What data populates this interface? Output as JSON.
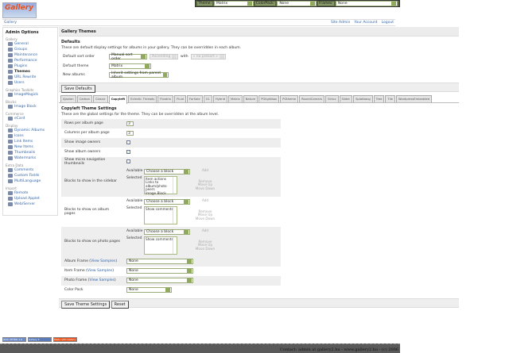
{
  "themebar": {
    "theme_label": "Theme:",
    "theme_value": "Matrix",
    "colorpack_label": "ColorPack:",
    "colorpack_value": "None",
    "frames_label": "Frames:",
    "frames_value": "None"
  },
  "logo": "Gallery",
  "breadcrumb": "Gallery",
  "header_links": [
    "Site Admin",
    "Your Account",
    "Logout"
  ],
  "sidebar": {
    "title": "Admin Options",
    "groups": [
      {
        "name": "Gallery",
        "items": [
          "General",
          "Groups",
          "Maintenance",
          "Performance",
          "Plugins",
          "Themes",
          "URL Rewrite",
          "Users"
        ]
      },
      {
        "name": "Graphics Toolkits",
        "items": [
          "ImageMagick"
        ]
      },
      {
        "name": "Blocks",
        "items": [
          "Image Block"
        ]
      },
      {
        "name": "Commerce",
        "items": [
          "eCard"
        ]
      },
      {
        "name": "Display",
        "items": [
          "Dynamic Albums",
          "Icons",
          "Link Items",
          "New Items",
          "Thumbnails",
          "Watermarks"
        ]
      },
      {
        "name": "Extra Data",
        "items": [
          "Comments",
          "Custom Fields",
          "MultiLanguage"
        ]
      },
      {
        "name": "Import",
        "items": [
          "Remote",
          "Upload Applet",
          "Web/Server"
        ]
      }
    ],
    "current": "Themes"
  },
  "main": {
    "title": "Gallery Themes",
    "defaults": {
      "heading": "Defaults",
      "description": "These are default display settings for albums in your gallery. They can be overridden in each album.",
      "sort_label": "Default sort order",
      "sort_value": "Manual sort order",
      "direction_value": "Ascending",
      "with_label": "with",
      "presort_value": "« no presort »",
      "theme_label": "Default theme",
      "theme_value": "Matrix",
      "new_albums_label": "New albums",
      "new_albums_value": "Inherit settings from parent album",
      "save_label": "Save Defaults"
    },
    "tabs": [
      "Ajaxian",
      "Carbon",
      "Classic",
      "Copyleft",
      "Eclectic Threads",
      "Floatrix",
      "Fluid",
      "ForSale",
      "G1",
      "Hybrid",
      "Matrix",
      "Nature",
      "PGlightbox",
      "PGtheme",
      "RoundCorners",
      "Siriux",
      "Slider",
      "Splatbang",
      "Tree",
      "Tile",
      "WordpressEmbedded"
    ],
    "active_tab": "Copyleft",
    "settings": {
      "heading": "Copyleft Theme Settings",
      "description": "These are the global settings for the theme. They can be overridden at the album level.",
      "rows_label": "Rows per album page",
      "rows_value": "3",
      "cols_label": "Columns per album page",
      "cols_value": "3",
      "image_owners_label": "Show image owners",
      "image_owners": false,
      "album_owners_label": "Show album owners",
      "album_owners": true,
      "micro_label": "Show micro navigation thumbnails",
      "micro": false,
      "available_label": "Available",
      "selected_label": "Selected",
      "choose_block": "Choose a block",
      "add": "Add",
      "remove": "Remove",
      "move_up": "Move Up",
      "move_down": "Move Down",
      "sidebar_blocks_label": "Blocks to show in the sidebar",
      "sidebar_blocks": [
        "Item actions",
        "Links to album/photo peers",
        "Image Block"
      ],
      "album_blocks_label": "Blocks to show on album pages",
      "album_blocks": [
        "Show comments"
      ],
      "photo_blocks_label": "Blocks to show on photo pages",
      "photo_blocks": [
        "Show comments"
      ],
      "view_samples": "View Samples",
      "album_frame_label": "Album Frame",
      "album_frame": "None",
      "item_frame_label": "Item Frame",
      "item_frame": "None",
      "photo_frame_label": "Photo Frame",
      "photo_frame": "None",
      "color_pack_label": "Color Pack",
      "color_pack": "None",
      "save_label": "Save Theme Settings",
      "reset_label": "Reset"
    }
  },
  "badges": [
    "W3C XHTML 1.0",
    "Gallery 2",
    "Made with Gallery"
  ],
  "footer": "Contact: admin at gallery2.hu - www.gallery2.hu - (c) 2006"
}
